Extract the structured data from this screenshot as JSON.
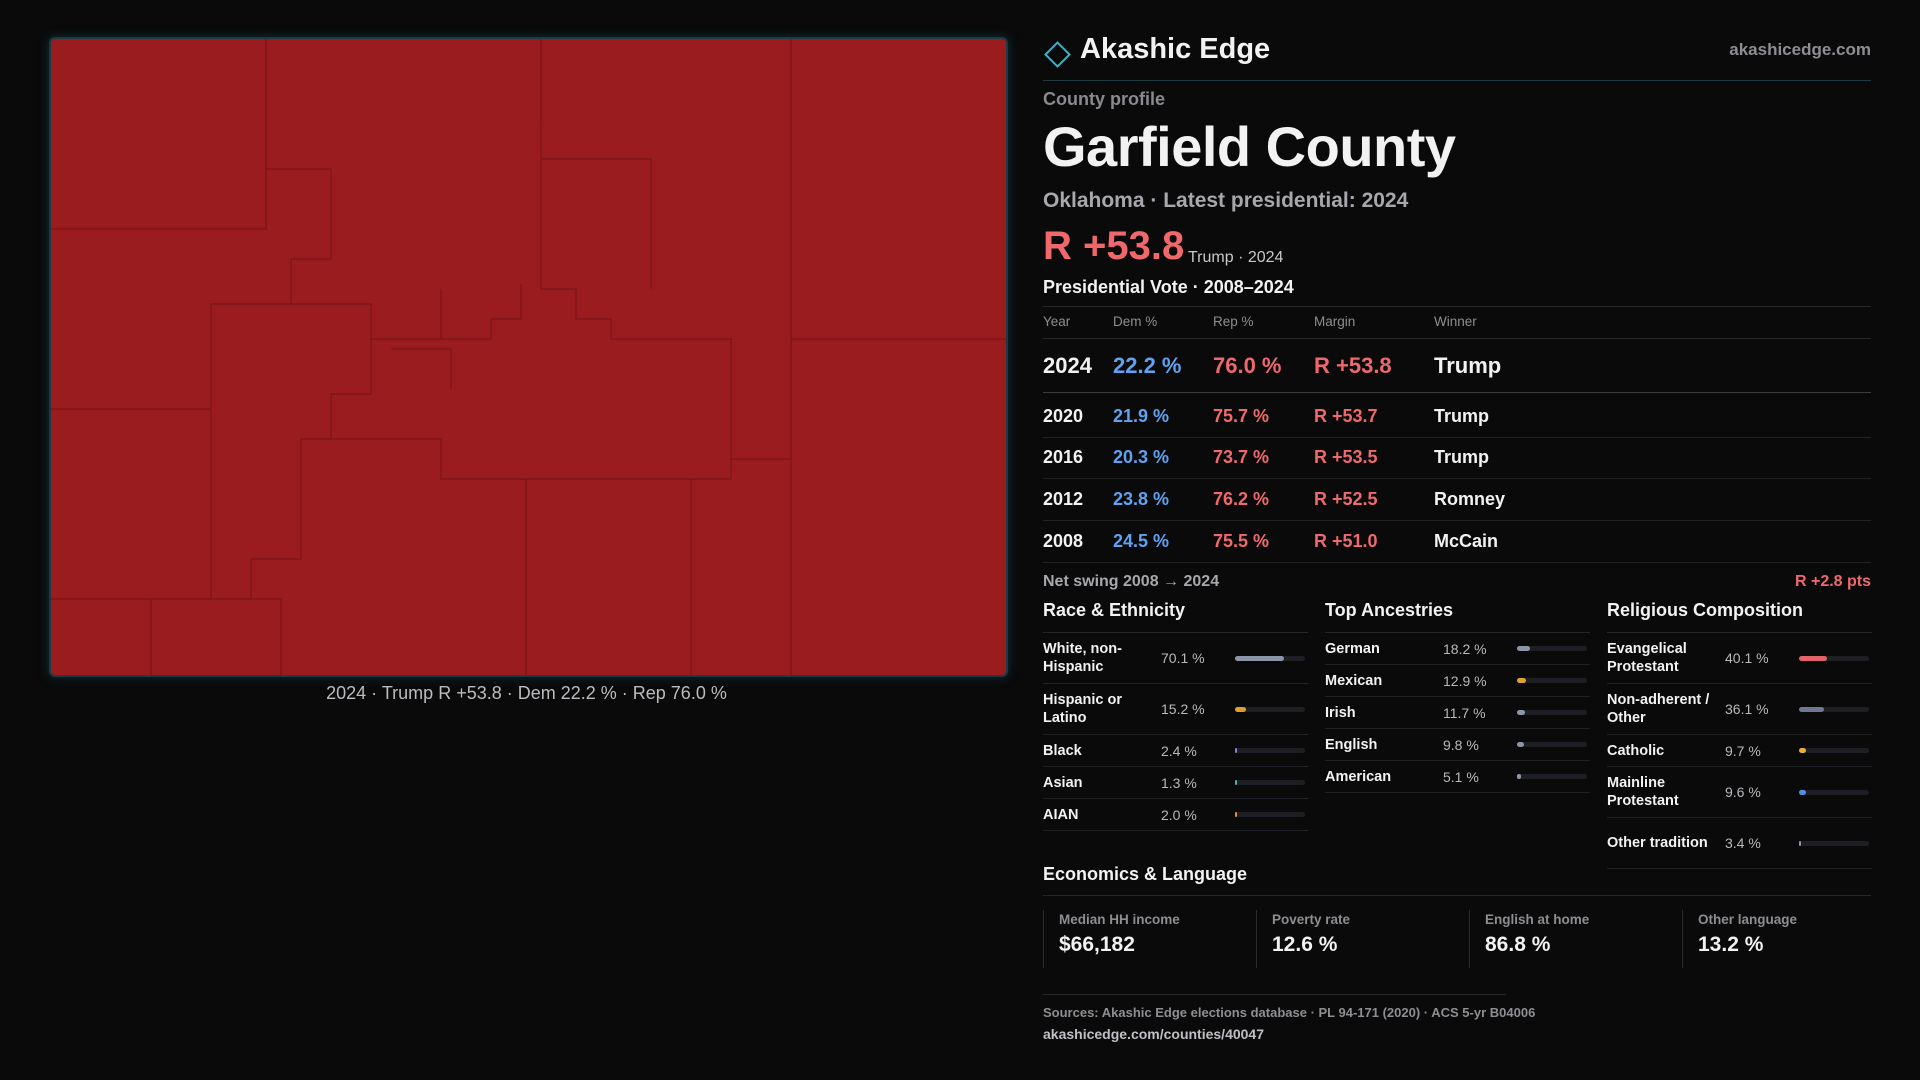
{
  "brand": {
    "name": "Akashic Edge",
    "site": "akashicedge.com"
  },
  "profile": {
    "kicker": "County profile",
    "title": "Garfield County",
    "subtitle": "Oklahoma · Latest presidential: 2024",
    "margin": "R +53.8",
    "margin_note": "Trump · 2024"
  },
  "map_caption": "2024 · Trump R +53.8 · Dem 22.2 % · Rep 76.0 %",
  "votes": {
    "title": "Presidential Vote · 2008–2024",
    "columns": [
      "Year",
      "Dem %",
      "Rep %",
      "Margin",
      "Winner"
    ],
    "rows": [
      [
        "2024",
        "22.2 %",
        "76.0 %",
        "R +53.8",
        "Trump"
      ],
      [
        "2020",
        "21.9 %",
        "75.7 %",
        "R +53.7",
        "Trump"
      ],
      [
        "2016",
        "20.3 %",
        "73.7 %",
        "R +53.5",
        "Trump"
      ],
      [
        "2012",
        "23.8 %",
        "76.2 %",
        "R +52.5",
        "Romney"
      ],
      [
        "2008",
        "24.5 %",
        "75.5 %",
        "R +51.0",
        "McCain"
      ]
    ]
  },
  "swing": {
    "label": "Net swing 2008 → 2024",
    "value": "R +2.8 pts"
  },
  "breakdowns": [
    {
      "title": "Race & Ethnicity",
      "rows": [
        {
          "label": "White, non-Hispanic",
          "value": 70.1,
          "value_label": "70.1 %",
          "color": "#8d95a8"
        },
        {
          "label": "Hispanic or Latino",
          "value": 15.2,
          "value_label": "15.2 %",
          "color": "#e0a030"
        },
        {
          "label": "Black",
          "value": 2.4,
          "value_label": "2.4 %",
          "color": "#8a7cf0"
        },
        {
          "label": "Asian",
          "value": 1.3,
          "value_label": "1.3 %",
          "color": "#4fb0a0"
        },
        {
          "label": "AIAN",
          "value": 2.0,
          "value_label": "2.0 %",
          "color": "#e0903a"
        }
      ]
    },
    {
      "title": "Top Ancestries",
      "rows": [
        {
          "label": "German",
          "value": 18.2,
          "value_label": "18.2 %",
          "color": "#8d95a8"
        },
        {
          "label": "Mexican",
          "value": 12.9,
          "value_label": "12.9 %",
          "color": "#e0a030"
        },
        {
          "label": "Irish",
          "value": 11.7,
          "value_label": "11.7 %",
          "color": "#8d95a8"
        },
        {
          "label": "English",
          "value": 9.8,
          "value_label": "9.8 %",
          "color": "#8d95a8"
        },
        {
          "label": "American",
          "value": 5.1,
          "value_label": "5.1 %",
          "color": "#8d95a8"
        }
      ]
    },
    {
      "title": "Religious Composition",
      "rows": [
        {
          "label": "Evangelical Protestant",
          "value": 40.1,
          "value_label": "40.1 %",
          "color": "#e0646a"
        },
        {
          "label": "Non-adherent / Other",
          "value": 36.1,
          "value_label": "36.1 %",
          "color": "#6f7890"
        },
        {
          "label": "Catholic",
          "value": 9.7,
          "value_label": "9.7 %",
          "color": "#e8b030"
        },
        {
          "label": "Mainline Protestant",
          "value": 9.6,
          "value_label": "9.6 %",
          "color": "#4f8ee8"
        },
        {
          "label": "Other tradition",
          "value": 3.4,
          "value_label": "3.4 %",
          "color": "#8d95a8"
        }
      ]
    }
  ],
  "economics": {
    "title": "Economics & Language",
    "cards": [
      {
        "label": "Median HH income",
        "value": "$66,182"
      },
      {
        "label": "Poverty rate",
        "value": "12.6 %"
      },
      {
        "label": "English at home",
        "value": "86.8 %"
      },
      {
        "label": "Other language",
        "value": "13.2 %"
      }
    ]
  },
  "sources": {
    "text": "Sources: Akashic Edge elections database · PL 94-171 (2020) · ACS 5-yr B04006",
    "url": "akashicedge.com/counties/40047"
  }
}
